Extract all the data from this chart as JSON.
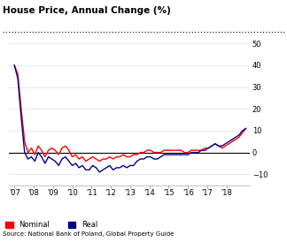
{
  "title": "House Price, Annual Change (%)",
  "source": "Source: National Bank of Poland, Global Property Guide",
  "ylim": [
    -15,
    55
  ],
  "yticks": [
    -10,
    0,
    10,
    20,
    30,
    40,
    50
  ],
  "nominal_color": "#FF0000",
  "real_color": "#00008B",
  "background_color": "#FFFFFF",
  "x_tick_labels": [
    "'07",
    "'08",
    "'09",
    "'10",
    "'11",
    "'12",
    "'13",
    "'14",
    "'15",
    "'16",
    "'17",
    "'18"
  ],
  "x_positions": [
    2007,
    2008,
    2009,
    2010,
    2011,
    2012,
    2013,
    2014,
    2015,
    2016,
    2017,
    2018
  ],
  "nominal": [
    40,
    36,
    20,
    5,
    0,
    2,
    -1,
    3,
    1,
    -2,
    1,
    2,
    1,
    -1,
    2,
    3,
    1,
    -2,
    -1,
    -3,
    -2,
    -4,
    -3,
    -2,
    -3,
    -4,
    -3,
    -3,
    -2,
    -3,
    -2,
    -2,
    -1,
    -2,
    -2,
    -1,
    -1,
    0,
    0,
    1,
    1,
    0,
    0,
    0,
    1,
    1,
    1,
    1,
    1,
    1,
    0,
    0,
    1,
    1,
    1,
    1,
    2,
    2,
    3,
    4,
    3,
    2,
    3,
    4,
    5,
    6,
    7,
    9,
    11
  ],
  "real": [
    40,
    34,
    16,
    0,
    -3,
    -2,
    -4,
    0,
    -2,
    -5,
    -2,
    -3,
    -4,
    -6,
    -3,
    -2,
    -4,
    -6,
    -5,
    -7,
    -6,
    -8,
    -8,
    -6,
    -7,
    -9,
    -8,
    -7,
    -6,
    -8,
    -7,
    -7,
    -6,
    -7,
    -6,
    -6,
    -4,
    -3,
    -3,
    -2,
    -2,
    -3,
    -3,
    -2,
    -1,
    -1,
    -1,
    -1,
    -1,
    -1,
    -1,
    -1,
    0,
    0,
    0,
    1,
    1,
    2,
    3,
    4,
    3,
    3,
    4,
    5,
    6,
    7,
    8,
    10,
    11
  ],
  "n_points": 69
}
